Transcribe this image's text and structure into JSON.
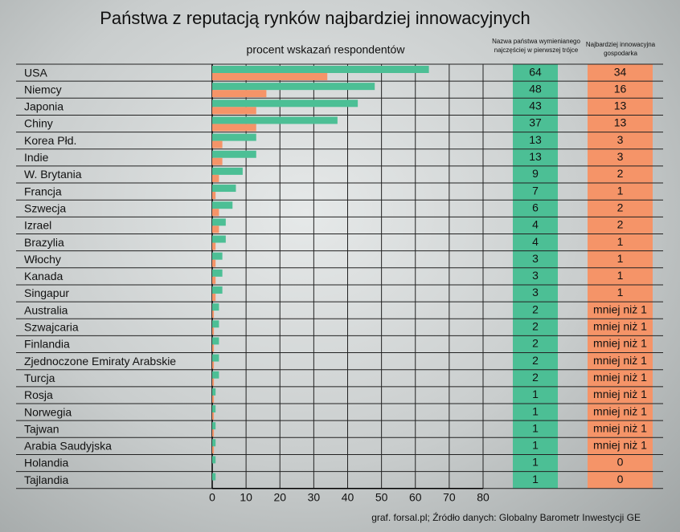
{
  "chart_data": {
    "type": "bar",
    "orientation": "horizontal",
    "title": "Państwa z reputacją rynków najbardziej innowacyjnych",
    "subtitle": "procent wskazań respondentów",
    "source": "graf. forsal.pl; Źródło danych: Globalny Barometr Inwestycji GE",
    "categories": [
      "USA",
      "Niemcy",
      "Japonia",
      "Chiny",
      "Korea Płd.",
      "Indie",
      "W. Brytania",
      "Francja",
      "Szwecja",
      "Izrael",
      "Brazylia",
      "Włochy",
      "Kanada",
      "Singapur",
      "Australia",
      "Szwajcaria",
      "Finlandia",
      "Zjednoczone Emiraty Arabskie",
      "Turcja",
      "Rosja",
      "Norwegia",
      "Tajwan",
      "Arabia Saudyjska",
      "Holandia",
      "Tajlandia"
    ],
    "series": [
      {
        "name": "Nazwa państwa wymienianego najczęściej w pierwszej trójce",
        "color": "#4cbf95",
        "values": [
          64,
          48,
          43,
          37,
          13,
          13,
          9,
          7,
          6,
          4,
          4,
          3,
          3,
          3,
          2,
          2,
          2,
          2,
          2,
          1,
          1,
          1,
          1,
          1,
          1
        ]
      },
      {
        "name": "Najbardziej innowacyjna gospodarka",
        "color": "#f59468",
        "values": [
          34,
          16,
          13,
          13,
          3,
          3,
          2,
          1,
          2,
          2,
          1,
          1,
          1,
          1,
          0.5,
          0.5,
          0.5,
          0.5,
          0.5,
          0.5,
          0.5,
          0.5,
          0.5,
          0,
          0
        ],
        "value_labels": [
          null,
          null,
          null,
          null,
          null,
          null,
          null,
          null,
          null,
          null,
          null,
          null,
          null,
          null,
          "mniej niż 1",
          "mniej niż 1",
          "mniej niż 1",
          "mniej niż 1",
          "mniej niż 1",
          "mniej niż 1",
          "mniej niż 1",
          "mniej niż 1",
          "mniej niż 1",
          null,
          null
        ]
      }
    ],
    "xlim": [
      0,
      80
    ],
    "xticks": [
      0,
      10,
      20,
      30,
      40,
      50,
      60,
      70,
      80
    ],
    "grid": true
  }
}
